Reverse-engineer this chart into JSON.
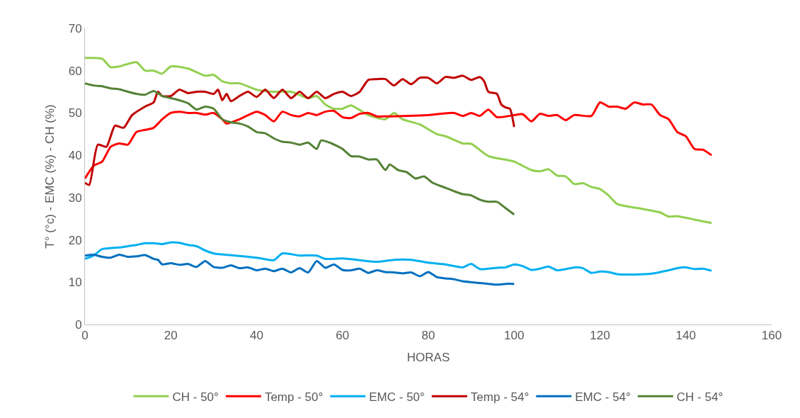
{
  "chart_data": {
    "type": "line",
    "xlabel": "HORAS",
    "ylabel": "T° (°c) - EMC (%) - CH (%)",
    "xlim": [
      0,
      160
    ],
    "xticks": [
      0,
      20,
      40,
      60,
      80,
      100,
      120,
      140,
      160
    ],
    "ylim": [
      0,
      70
    ],
    "yticks": [
      0,
      10,
      20,
      30,
      40,
      50,
      60,
      70
    ],
    "grid": false,
    "legend": "bottom",
    "marker": "none",
    "line_style": "solid",
    "series": [
      {
        "name": "CH - 50°",
        "color": "#92d050",
        "x": [
          0,
          4,
          6,
          8,
          12,
          14,
          16,
          18,
          20,
          24,
          28,
          30,
          32,
          34,
          36,
          40,
          44,
          48,
          52,
          54,
          56,
          58,
          60,
          62,
          66,
          70,
          72,
          74,
          78,
          82,
          84,
          88,
          90,
          94,
          100,
          104,
          106,
          108,
          110,
          112,
          114,
          116,
          118,
          120,
          122,
          124,
          130,
          134,
          136,
          138,
          142,
          146
        ],
        "values": [
          63,
          62.8,
          60.8,
          61,
          62,
          60,
          60,
          59.3,
          61,
          60.5,
          58.8,
          59,
          57.5,
          57,
          57,
          55.5,
          55,
          55,
          53.5,
          54,
          52,
          51,
          51,
          51.8,
          49.5,
          48.5,
          50,
          48.5,
          47.3,
          45,
          44.5,
          42.8,
          42.7,
          39.8,
          38.5,
          36.5,
          36.2,
          36.7,
          35.2,
          35,
          33.2,
          33.4,
          32.5,
          32,
          30.5,
          28.5,
          27.3,
          26.5,
          25.5,
          25.6,
          24.8,
          24
        ]
      },
      {
        "name": "Temp - 50°",
        "color": "#ff0000",
        "x": [
          0,
          2,
          4,
          6,
          8,
          10,
          12,
          14,
          16,
          18,
          20,
          22,
          24,
          26,
          28,
          30,
          32,
          33,
          36,
          40,
          42,
          44,
          46,
          48,
          50,
          52,
          54,
          56,
          58,
          60,
          62,
          64,
          66,
          68,
          70,
          80,
          86,
          88,
          90,
          92,
          94,
          96,
          100,
          102,
          104,
          106,
          108,
          110,
          112,
          114,
          118,
          120,
          122,
          124,
          126,
          128,
          130,
          132,
          134,
          136,
          138,
          140,
          142,
          144,
          146
        ],
        "values": [
          34.5,
          37.5,
          38.5,
          42,
          42.8,
          42.5,
          45.5,
          46,
          46.5,
          48.5,
          50,
          50.3,
          50,
          50,
          49.6,
          50,
          48.5,
          47.5,
          48.5,
          50.3,
          49.5,
          48,
          50.3,
          49.5,
          49.2,
          50,
          49.5,
          50.3,
          50.5,
          49,
          48.8,
          49.8,
          50,
          49.2,
          49.2,
          49.5,
          50,
          49.3,
          50,
          49.3,
          50.8,
          49,
          49.5,
          49.7,
          48,
          49.8,
          49.3,
          49.5,
          48.3,
          49.5,
          49.3,
          52.5,
          51.5,
          51.5,
          51,
          52.5,
          52,
          52,
          49.5,
          48.5,
          45.5,
          44.5,
          41.5,
          41.3,
          40
        ]
      },
      {
        "name": "EMC - 50°",
        "color": "#00b0f0",
        "x": [
          0,
          2,
          4,
          8,
          10,
          12,
          14,
          16,
          18,
          20,
          22,
          24,
          26,
          28,
          30,
          35,
          40,
          44,
          46,
          50,
          54,
          56,
          60,
          64,
          68,
          72,
          76,
          80,
          84,
          86,
          88,
          90,
          92,
          94,
          96,
          98,
          100,
          102,
          104,
          106,
          108,
          110,
          112,
          114,
          116,
          118,
          120,
          122,
          124,
          128,
          132,
          136,
          138,
          140,
          142,
          144,
          146
        ],
        "values": [
          15.5,
          16.3,
          17.8,
          18.2,
          18.5,
          18.8,
          19.2,
          19.2,
          19,
          19.4,
          19.3,
          18.8,
          18.5,
          17.5,
          16.8,
          16.3,
          15.8,
          15.2,
          16.8,
          16.3,
          16.3,
          15.5,
          15.6,
          15.2,
          14.8,
          15.3,
          15.3,
          14.6,
          14.2,
          13.8,
          13.5,
          14.3,
          13.1,
          13.2,
          13.4,
          13.5,
          14.2,
          13.8,
          12.9,
          13.2,
          13.7,
          12.8,
          13.1,
          13.5,
          13.3,
          12.2,
          12.5,
          12.4,
          11.9,
          11.8,
          12,
          12.8,
          13.3,
          13.5,
          13.1,
          13.2,
          12.7
        ]
      },
      {
        "name": "Temp - 54°",
        "color": "#c00000",
        "x": [
          0,
          1,
          3,
          5,
          7,
          9,
          11,
          14,
          16,
          17,
          18,
          20,
          22,
          24,
          26,
          28,
          30,
          31,
          32,
          33,
          34,
          36,
          38,
          40,
          42,
          44,
          46,
          48,
          50,
          52,
          54,
          56,
          58,
          60,
          62,
          64,
          66,
          68,
          70,
          72,
          74,
          76,
          78,
          80,
          82,
          84,
          86,
          88,
          90,
          92,
          93,
          94,
          96,
          97,
          98,
          99,
          100
        ],
        "values": [
          33.5,
          33,
          42.5,
          42,
          47,
          46.5,
          49.5,
          51.5,
          52.5,
          55,
          54,
          54,
          55.5,
          54.7,
          55,
          55,
          54.5,
          55.5,
          53,
          54.5,
          52.8,
          54,
          55,
          53.8,
          55.5,
          53.5,
          55.5,
          53.5,
          55,
          53.5,
          55,
          53.5,
          54.5,
          55,
          54,
          55,
          57.8,
          58,
          58,
          56.5,
          58,
          56.8,
          58.3,
          58.3,
          57,
          58.5,
          58.3,
          58.8,
          57.8,
          58.5,
          57.5,
          55,
          54.5,
          52,
          51.3,
          51,
          46.7
        ]
      },
      {
        "name": "EMC - 54°",
        "color": "#0070c0",
        "x": [
          0,
          2,
          4,
          6,
          8,
          10,
          12,
          14,
          16,
          17,
          18,
          20,
          22,
          24,
          26,
          28,
          30,
          32,
          34,
          36,
          38,
          40,
          42,
          44,
          46,
          48,
          50,
          52,
          54,
          56,
          58,
          60,
          62,
          64,
          66,
          68,
          70,
          72,
          74,
          76,
          78,
          80,
          82,
          84,
          86,
          88,
          90,
          92,
          94,
          96,
          98,
          100
        ],
        "values": [
          16.3,
          16.5,
          16,
          15.8,
          16.5,
          16,
          16.1,
          16.4,
          15.5,
          15.3,
          14.2,
          14.5,
          14.1,
          14.3,
          13.6,
          15,
          13.6,
          13.4,
          14,
          13.3,
          13.5,
          12.8,
          13.2,
          12.6,
          13.2,
          12.3,
          13.3,
          12.3,
          15,
          13.4,
          14.2,
          12.9,
          12.8,
          13.2,
          12.2,
          12.8,
          12.4,
          12.3,
          12.1,
          12.3,
          11.4,
          12.4,
          11.2,
          10.9,
          10.7,
          10.2,
          10,
          9.8,
          9.6,
          9.4,
          9.6,
          9.6
        ]
      },
      {
        "name": "CH - 54°",
        "color": "#548235",
        "x": [
          0,
          2,
          4,
          6,
          8,
          10,
          12,
          14,
          16,
          18,
          20,
          22,
          24,
          26,
          28,
          30,
          32,
          34,
          36,
          38,
          40,
          42,
          44,
          46,
          48,
          50,
          52,
          54,
          55,
          57,
          60,
          62,
          64,
          66,
          68,
          70,
          71,
          73,
          75,
          77,
          79,
          81,
          84,
          86,
          88,
          90,
          92,
          94,
          96,
          98,
          100
        ],
        "values": [
          57,
          56.5,
          56.3,
          55.8,
          55.6,
          55,
          54.5,
          54.3,
          55.2,
          54,
          53.5,
          53,
          52.3,
          50.8,
          51.5,
          51,
          48.5,
          47.8,
          47.5,
          46.8,
          45.5,
          45.2,
          44,
          43.2,
          43,
          42.5,
          43,
          41.5,
          43.5,
          43,
          41.5,
          39.8,
          39.7,
          39,
          39,
          36.5,
          37.8,
          36.5,
          36,
          34.5,
          35,
          33.5,
          32.3,
          31.5,
          30.8,
          30.5,
          29.5,
          29,
          29,
          27.5,
          26
        ]
      }
    ]
  }
}
